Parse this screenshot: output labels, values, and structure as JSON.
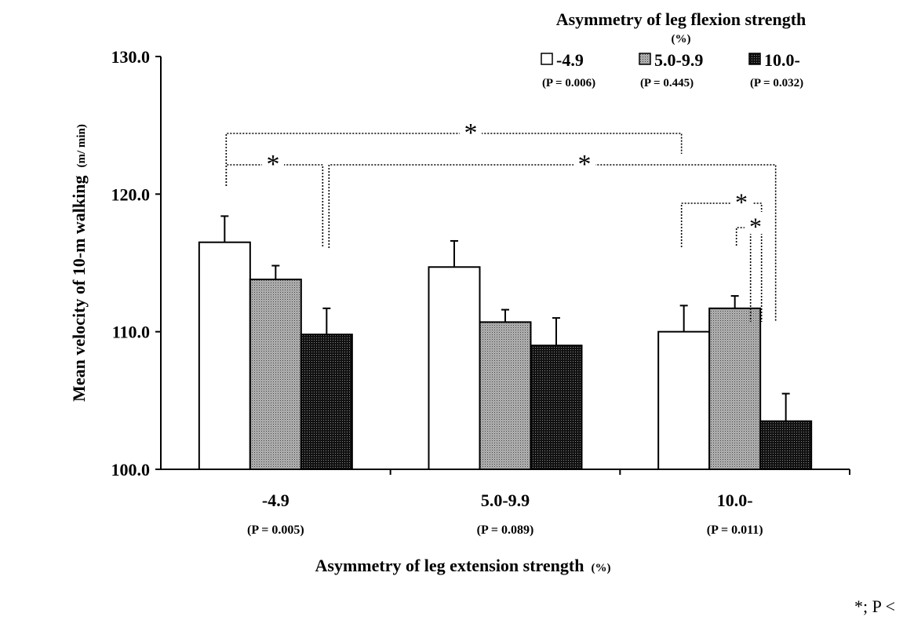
{
  "chart_data": {
    "type": "bar",
    "title": "Asymmetry of leg flexion strength",
    "title_unit": "(%)",
    "xlabel": "Asymmetry of leg extension strength",
    "xlabel_unit": "(%)",
    "ylabel": "Mean velocity of 10-m walking",
    "ylabel_unit": "(m/ min)",
    "ylim": [
      100.0,
      130.0
    ],
    "yticks": [
      "100.0",
      "110.0",
      "120.0",
      "130.0"
    ],
    "categories": [
      "-4.9",
      "5.0-9.9",
      "10.0-"
    ],
    "category_p": [
      "(P = 0.005)",
      "(P = 0.089)",
      "(P = 0.011)"
    ],
    "series": [
      {
        "name": "-4.9",
        "p": "(P = 0.006)",
        "color": "#ffffff",
        "values": [
          116.5,
          114.7,
          110.0
        ],
        "errors": [
          1.9,
          1.9,
          1.9
        ]
      },
      {
        "name": "5.0-9.9",
        "p": "(P = 0.445)",
        "color": "#a0a0a0",
        "values": [
          113.8,
          110.7,
          111.7
        ],
        "errors": [
          1.0,
          0.9,
          0.9
        ]
      },
      {
        "name": "10.0-",
        "p": "(P = 0.032)",
        "color": "#1a1a1a",
        "values": [
          109.8,
          109.0,
          103.5
        ],
        "errors": [
          1.9,
          2.0,
          2.0
        ]
      }
    ],
    "legend_position": "top-right",
    "significance_marker": "*",
    "footnote": "*; P <"
  }
}
